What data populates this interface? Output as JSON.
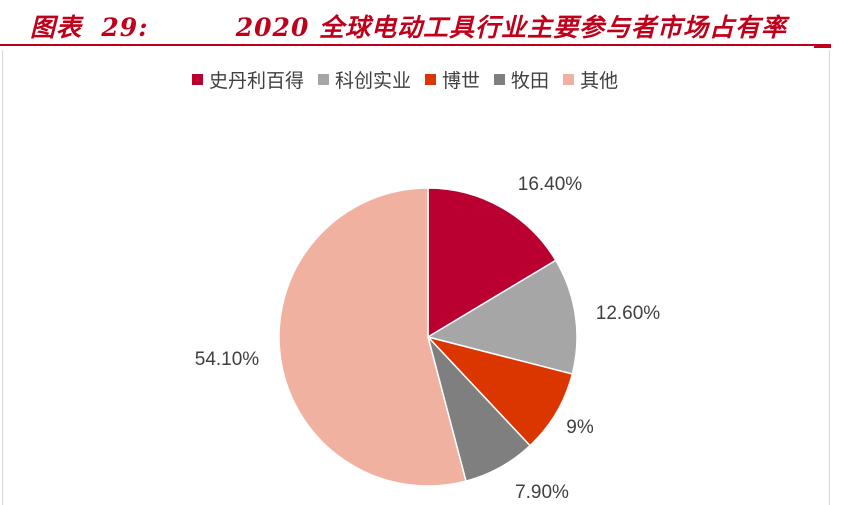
{
  "header": {
    "title": "图表  29:         2020 全球电动工具行业主要参与者市场占有率"
  },
  "chart_data": {
    "type": "pie",
    "categories": [
      "史丹利百得",
      "科创实业",
      "博世",
      "牧田",
      "其他"
    ],
    "values": [
      16.4,
      12.6,
      9,
      7.9,
      54.1
    ],
    "data_labels": [
      "16.40%",
      "12.60%",
      "9%",
      "7.90%",
      "54.10%"
    ],
    "colors": [
      "#b90030",
      "#a6a6a6",
      "#db3500",
      "#7f7f7f",
      "#f0b1a1"
    ],
    "legend_position": "top",
    "start_angle": "12 o'clock",
    "direction": "clockwise"
  }
}
